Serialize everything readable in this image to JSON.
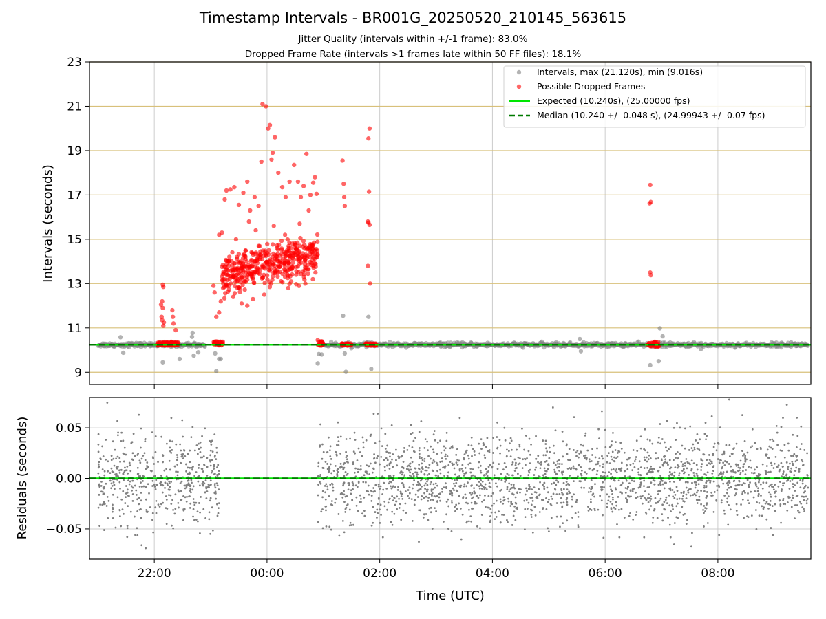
{
  "title": "Timestamp Intervals - BR001G_20250520_210145_563615",
  "subtitle_1": "Jitter Quality (intervals within +/-1 frame): 83.0%",
  "subtitle_2": "Dropped Frame Rate (intervals >1 frames late within 50 FF files): 18.1%",
  "colors": {
    "interval_points": "#808080",
    "dropped_points": "#ff0000",
    "expected_line": "#00e600",
    "median_line": "#007a00",
    "gold_grid": "#d8c07a",
    "grid": "#cccccc"
  },
  "chart_data": [
    {
      "type": "scatter",
      "panel": "intervals",
      "xlabel": "",
      "ylabel": "Intervals (seconds)",
      "x_unit": "hours UTC since 00:00 (negative = previous day)",
      "xlim": [
        -3.15,
        9.65
      ],
      "ylim": [
        8.45,
        23.0
      ],
      "yticks": [
        9,
        11,
        13,
        15,
        17,
        19,
        21,
        23
      ],
      "ytick_labels": [
        "9",
        "11",
        "13",
        "15",
        "17",
        "19",
        "21",
        "23"
      ],
      "grid": true,
      "legend_position": "top-right",
      "legend": [
        "Intervals, max (21.120s), min (9.016s)",
        "Possible Dropped Frames",
        "Expected (10.240s), (25.00000 fps)",
        "Median (10.240 +/- 0.048 s), (24.99943 +/- 0.07 fps)"
      ],
      "expected_value": 10.24,
      "median_value": 10.24,
      "series": [
        {
          "name": "Intervals, max (21.120s), min (9.016s)",
          "baseline": 10.24,
          "segments": [
            [
              -3.0,
              -1.1
            ],
            [
              0.95,
              9.6
            ]
          ],
          "points": [
            [
              -2.6,
              10.58
            ],
            [
              -2.55,
              9.88
            ],
            [
              -2.05,
              10.3
            ],
            [
              -1.85,
              9.45
            ],
            [
              -1.7,
              10.15
            ],
            [
              -1.55,
              9.6
            ],
            [
              -1.33,
              10.6
            ],
            [
              -1.32,
              10.78
            ],
            [
              -1.3,
              9.75
            ],
            [
              -1.22,
              9.9
            ],
            [
              -0.9,
              9.05
            ],
            [
              -0.85,
              9.6
            ],
            [
              -0.92,
              9.85
            ],
            [
              -0.82,
              9.6
            ],
            [
              0.9,
              9.4
            ],
            [
              0.92,
              9.82
            ],
            [
              0.97,
              9.8
            ],
            [
              1.35,
              11.55
            ],
            [
              1.38,
              9.85
            ],
            [
              1.4,
              9.02
            ],
            [
              1.8,
              11.5
            ],
            [
              1.85,
              9.15
            ],
            [
              5.55,
              10.5
            ],
            [
              5.57,
              9.95
            ],
            [
              6.8,
              9.32
            ],
            [
              6.95,
              9.5
            ],
            [
              6.97,
              10.98
            ],
            [
              7.02,
              10.62
            ],
            [
              7.7,
              10.05
            ],
            [
              9.3,
              10.35
            ]
          ]
        },
        {
          "name": "Possible Dropped Frames",
          "points": [
            [
              -1.85,
              12.95
            ],
            [
              -1.84,
              12.85
            ],
            [
              -1.86,
              12.2
            ],
            [
              -1.88,
              12.05
            ],
            [
              -1.85,
              11.9
            ],
            [
              -1.87,
              11.5
            ],
            [
              -1.86,
              11.35
            ],
            [
              -1.84,
              11.1
            ],
            [
              -1.83,
              11.25
            ],
            [
              -1.68,
              11.8
            ],
            [
              -1.67,
              11.5
            ],
            [
              -1.66,
              11.2
            ],
            [
              -1.62,
              10.9
            ],
            [
              -0.95,
              12.9
            ],
            [
              -0.93,
              12.6
            ],
            [
              -0.9,
              11.5
            ],
            [
              -0.85,
              11.7
            ],
            [
              -0.82,
              12.2
            ],
            [
              -0.85,
              15.2
            ],
            [
              -0.8,
              15.3
            ],
            [
              -0.75,
              16.8
            ],
            [
              -0.72,
              17.2
            ],
            [
              -0.65,
              17.25
            ],
            [
              -0.58,
              17.35
            ],
            [
              -0.5,
              16.55
            ],
            [
              -0.42,
              17.1
            ],
            [
              -0.35,
              17.6
            ],
            [
              -0.3,
              16.3
            ],
            [
              -0.22,
              16.9
            ],
            [
              -0.15,
              16.5
            ],
            [
              -0.1,
              18.5
            ],
            [
              -0.08,
              21.1
            ],
            [
              -0.02,
              21.0
            ],
            [
              0.02,
              20.0
            ],
            [
              0.05,
              20.15
            ],
            [
              0.08,
              18.6
            ],
            [
              0.1,
              18.9
            ],
            [
              0.14,
              19.6
            ],
            [
              0.2,
              18.0
            ],
            [
              0.27,
              17.35
            ],
            [
              0.33,
              16.9
            ],
            [
              0.4,
              17.6
            ],
            [
              0.48,
              18.35
            ],
            [
              0.55,
              17.6
            ],
            [
              0.6,
              16.9
            ],
            [
              0.65,
              17.4
            ],
            [
              0.7,
              18.85
            ],
            [
              0.77,
              17.0
            ],
            [
              0.82,
              17.55
            ],
            [
              0.88,
              17.05
            ],
            [
              0.85,
              17.8
            ],
            [
              -0.7,
              14.0
            ],
            [
              -0.6,
              13.3
            ],
            [
              -0.55,
              15.0
            ],
            [
              -0.45,
              13.8
            ],
            [
              -0.38,
              14.5
            ],
            [
              -0.32,
              15.8
            ],
            [
              -0.25,
              13.2
            ],
            [
              -0.2,
              15.4
            ],
            [
              -0.12,
              14.3
            ],
            [
              -0.05,
              12.5
            ],
            [
              0.0,
              13.9
            ],
            [
              0.12,
              15.6
            ],
            [
              0.18,
              14.6
            ],
            [
              0.25,
              13.1
            ],
            [
              0.32,
              15.2
            ],
            [
              0.38,
              13.6
            ],
            [
              0.45,
              14.8
            ],
            [
              0.52,
              13.4
            ],
            [
              0.58,
              15.7
            ],
            [
              0.63,
              14.2
            ],
            [
              0.68,
              13.0
            ],
            [
              0.74,
              16.3
            ],
            [
              0.8,
              14.7
            ],
            [
              0.86,
              13.5
            ],
            [
              -0.6,
              12.4
            ],
            [
              -0.45,
              12.1
            ],
            [
              -0.35,
              12.0
            ],
            [
              -0.25,
              12.3
            ],
            [
              -0.78,
              12.8
            ],
            [
              0.9,
              10.45
            ],
            [
              0.92,
              10.35
            ],
            [
              1.34,
              18.55
            ],
            [
              1.36,
              17.5
            ],
            [
              1.37,
              16.9
            ],
            [
              1.38,
              16.5
            ],
            [
              1.82,
              20.0
            ],
            [
              1.8,
              19.55
            ],
            [
              1.81,
              17.15
            ],
            [
              1.79,
              15.8
            ],
            [
              1.8,
              15.75
            ],
            [
              1.82,
              15.65
            ],
            [
              1.79,
              13.8
            ],
            [
              1.83,
              13.0
            ],
            [
              6.8,
              17.45
            ],
            [
              6.79,
              16.62
            ],
            [
              6.81,
              16.68
            ],
            [
              6.8,
              13.5
            ],
            [
              6.81,
              13.38
            ]
          ],
          "clusters": [
            {
              "x_range": [
                -0.8,
                0.9
              ],
              "y_range": [
                12.6,
                15.0
              ],
              "trend": "rising"
            },
            {
              "x_range": [
                -1.95,
                -1.55
              ],
              "y_range": [
                10.2,
                10.38
              ],
              "trend": "flat"
            },
            {
              "x_range": [
                -0.95,
                -0.78
              ],
              "y_range": [
                10.2,
                10.4
              ],
              "trend": "flat"
            },
            {
              "x_range": [
                0.9,
                1.0
              ],
              "y_range": [
                10.2,
                10.4
              ],
              "trend": "flat"
            },
            {
              "x_range": [
                1.32,
                1.5
              ],
              "y_range": [
                10.2,
                10.3
              ],
              "trend": "flat"
            },
            {
              "x_range": [
                1.75,
                1.95
              ],
              "y_range": [
                10.2,
                10.3
              ],
              "trend": "flat"
            },
            {
              "x_range": [
                6.75,
                6.95
              ],
              "y_range": [
                10.15,
                10.4
              ],
              "trend": "flat"
            }
          ]
        }
      ]
    },
    {
      "type": "scatter",
      "panel": "residuals",
      "xlabel": "Time (UTC)",
      "ylabel": "Residuals (seconds)",
      "x_unit": "hours UTC since 00:00 (negative = previous day)",
      "xlim": [
        -3.15,
        9.65
      ],
      "ylim": [
        -0.08,
        0.08
      ],
      "yticks": [
        -0.05,
        0.0,
        0.05
      ],
      "ytick_labels": [
        "−0.05",
        "0.00",
        "0.05"
      ],
      "xticks": [
        -2,
        0,
        2,
        4,
        6,
        8
      ],
      "xtick_labels": [
        "22:00",
        "00:00",
        "02:00",
        "04:00",
        "06:00",
        "08:00"
      ],
      "grid": true,
      "zero_line": 0.0,
      "series": [
        {
          "name": "",
          "segments": [
            [
              -3.0,
              -0.85
            ],
            [
              0.9,
              9.6
            ]
          ],
          "std": 0.022
        }
      ]
    }
  ]
}
